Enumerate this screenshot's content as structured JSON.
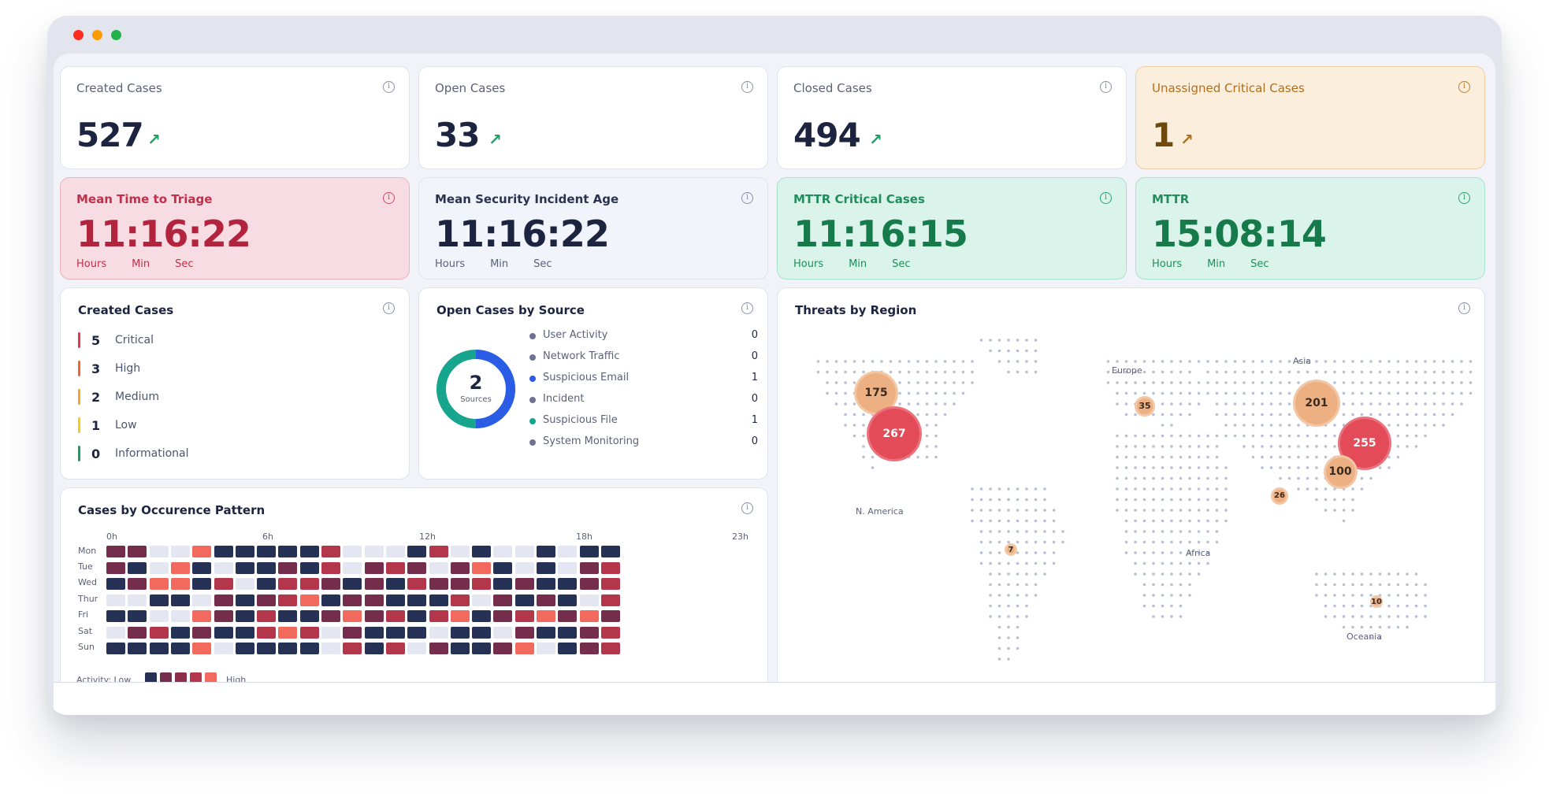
{
  "stats": [
    {
      "title": "Created Cases",
      "value": "527",
      "arrow": "↗"
    },
    {
      "title": "Open Cases",
      "value": "33",
      "arrow": "↗"
    },
    {
      "title": "Closed Cases",
      "value": "494",
      "arrow": "↗"
    },
    {
      "title": "Unassigned Critical Cases",
      "value": "1",
      "arrow": "↗"
    }
  ],
  "timers": [
    {
      "title": "Mean Time to Triage",
      "value": "11:16:22",
      "hours": "Hours",
      "min": "Min",
      "sec": "Sec"
    },
    {
      "title": "Mean Security Incident Age",
      "value": "11:16:22",
      "hours": "Hours",
      "min": "Min",
      "sec": "Sec"
    },
    {
      "title": "MTTR Critical Cases",
      "value": "11:16:15",
      "hours": "Hours",
      "min": "Min",
      "sec": "Sec"
    },
    {
      "title": "MTTR",
      "value": "15:08:14",
      "hours": "Hours",
      "min": "Min",
      "sec": "Sec"
    }
  ],
  "info_icon": "i",
  "created_cases": {
    "title": "Created Cases",
    "items": [
      {
        "count": "5",
        "label": "Critical",
        "color": "#e0394c"
      },
      {
        "count": "3",
        "label": "High",
        "color": "#f0662a"
      },
      {
        "count": "2",
        "label": "Medium",
        "color": "#f3a623"
      },
      {
        "count": "1",
        "label": "Low",
        "color": "#f2cf1d"
      },
      {
        "count": "0",
        "label": "Informational",
        "color": "#1f9d63"
      }
    ]
  },
  "open_by_source": {
    "title": "Open Cases by Source",
    "donut_value": "2",
    "donut_label": "Sources",
    "items": [
      {
        "label": "User Activity",
        "value": "0",
        "color": "#6e7290"
      },
      {
        "label": "Network Traffic",
        "value": "0",
        "color": "#6e7290"
      },
      {
        "label": "Suspicious Email",
        "value": "1",
        "color": "#2a5ce6"
      },
      {
        "label": "Incident",
        "value": "0",
        "color": "#6e7290"
      },
      {
        "label": "Suspicious File",
        "value": "1",
        "color": "#17a58e"
      },
      {
        "label": "System Monitoring",
        "value": "0",
        "color": "#6e7290"
      }
    ]
  },
  "heatmap": {
    "title": "Cases by Occurence Pattern",
    "hour_labels": [
      "0h",
      "6h",
      "12h",
      "18h",
      "23h"
    ],
    "days": [
      "Mon",
      "Tue",
      "Wed",
      "Thur",
      "Fri",
      "Sat",
      "Sun"
    ],
    "legend_low": "Activity: Low",
    "legend_high": "High",
    "levels": [
      [
        2,
        2,
        0,
        0,
        4,
        1,
        1,
        1,
        1,
        1,
        3,
        0,
        0,
        0,
        1,
        3,
        0,
        1,
        0,
        0,
        1,
        0,
        1,
        1
      ],
      [
        2,
        1,
        0,
        4,
        1,
        0,
        1,
        1,
        2,
        1,
        3,
        0,
        2,
        3,
        2,
        0,
        2,
        4,
        1,
        0,
        1,
        0,
        2,
        3
      ],
      [
        1,
        2,
        4,
        4,
        1,
        3,
        0,
        1,
        3,
        3,
        2,
        1,
        2,
        1,
        3,
        2,
        2,
        3,
        1,
        2,
        1,
        1,
        2,
        3
      ],
      [
        0,
        0,
        1,
        1,
        0,
        2,
        1,
        2,
        3,
        4,
        1,
        2,
        2,
        1,
        1,
        1,
        3,
        0,
        2,
        1,
        2,
        1,
        0,
        3
      ],
      [
        1,
        1,
        0,
        0,
        4,
        2,
        1,
        3,
        1,
        1,
        2,
        4,
        2,
        3,
        1,
        3,
        4,
        1,
        2,
        3,
        4,
        2,
        4,
        2
      ],
      [
        0,
        2,
        3,
        1,
        2,
        1,
        1,
        3,
        4,
        3,
        0,
        2,
        1,
        1,
        1,
        0,
        1,
        1,
        0,
        2,
        1,
        1,
        2,
        3
      ],
      [
        1,
        1,
        1,
        1,
        4,
        0,
        1,
        1,
        1,
        1,
        0,
        3,
        1,
        3,
        0,
        2,
        1,
        1,
        2,
        4,
        0,
        1,
        2,
        3
      ]
    ],
    "colors": [
      "#e4e7f2",
      "#263156",
      "#752d4c",
      "#b3364a",
      "#f2695e"
    ]
  },
  "threats": {
    "title": "Threats by Region",
    "regions": [
      "Europe",
      "Asia",
      "N. America",
      "Africa",
      "Oceania"
    ],
    "bubbles": [
      {
        "label": "175",
        "value": 175
      },
      {
        "label": "267",
        "value": 267
      },
      {
        "label": "35",
        "value": 35
      },
      {
        "label": "201",
        "value": 201
      },
      {
        "label": "255",
        "value": 255
      },
      {
        "label": "100",
        "value": 100
      },
      {
        "label": "26",
        "value": 26
      },
      {
        "label": "7",
        "value": 7
      },
      {
        "label": "10",
        "value": 10
      }
    ]
  }
}
